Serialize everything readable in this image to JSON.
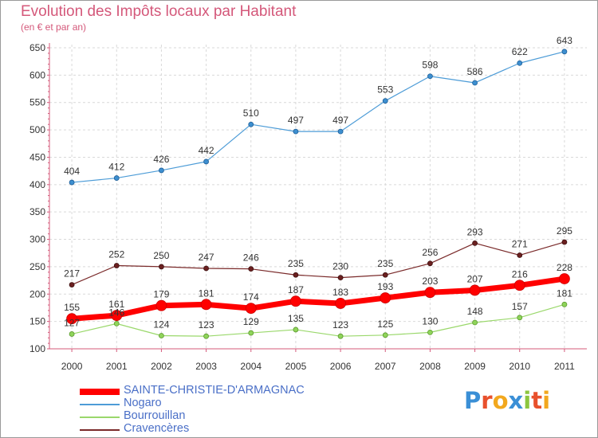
{
  "header": {
    "title": "Evolution des Impôts locaux par Habitant",
    "subtitle": "(en € et par an)"
  },
  "brand": {
    "letters": [
      "P",
      "r",
      "o",
      "x",
      "i",
      "t",
      "i"
    ],
    "colors": [
      "#3a8fd6",
      "#e8502c",
      "#f2a81e",
      "#3a8fd6",
      "#8cc63f",
      "#e8502c",
      "#f2a81e"
    ]
  },
  "chart_data": {
    "type": "line",
    "x": [
      "2000",
      "2001",
      "2002",
      "2003",
      "2004",
      "2005",
      "2006",
      "2007",
      "2008",
      "2009",
      "2010",
      "2011"
    ],
    "ylim": [
      100,
      650
    ],
    "yticks": [
      "100",
      "150",
      "200",
      "250",
      "300",
      "350",
      "400",
      "450",
      "500",
      "550",
      "600",
      "650"
    ],
    "grid": true,
    "legend_position": "bottom-left",
    "series": [
      {
        "name": "SAINTE-CHRISTIE-D'ARMAGNAC",
        "color": "#ff0000",
        "values": [
          155,
          161,
          179,
          181,
          174,
          187,
          183,
          193,
          203,
          207,
          216,
          228
        ],
        "labels": [
          "155",
          "161",
          "179",
          "181",
          "174",
          "187",
          "183",
          "193",
          "203",
          "207",
          "216",
          "228"
        ]
      },
      {
        "name": "Nogaro",
        "color": "#4d9cd7",
        "values": [
          404,
          412,
          426,
          442,
          510,
          497,
          497,
          553,
          598,
          586,
          622,
          643
        ],
        "labels": [
          "404",
          "412",
          "426",
          "442",
          "510",
          "497",
          "497",
          "553",
          "598",
          "586",
          "622",
          "643"
        ]
      },
      {
        "name": "Bourrouillan",
        "color": "#9ad86b",
        "values": [
          127,
          146,
          124,
          123,
          129,
          135,
          123,
          125,
          130,
          148,
          157,
          181
        ],
        "labels": [
          "127",
          "146",
          "124",
          "123",
          "129",
          "135",
          "123",
          "125",
          "130",
          "148",
          "157",
          "181"
        ]
      },
      {
        "name": "Cravencères",
        "color": "#7a2a2a",
        "values": [
          217,
          252,
          250,
          247,
          246,
          235,
          230,
          235,
          256,
          293,
          271,
          295
        ],
        "labels": [
          "217",
          "252",
          "250",
          "247",
          "246",
          "235",
          "230",
          "235",
          "256",
          "293",
          "271",
          "295"
        ]
      }
    ]
  }
}
